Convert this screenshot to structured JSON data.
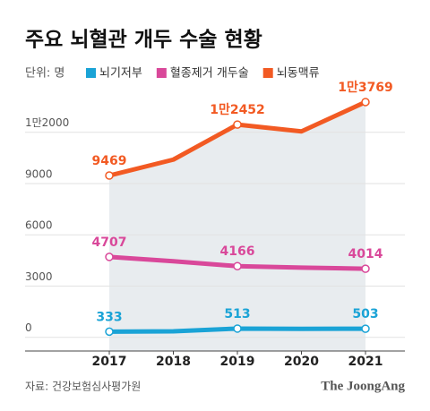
{
  "chart_data": {
    "type": "line",
    "title": "주요 뇌혈관 개두 수술 현황",
    "unit": "단위: 명",
    "source": "자료: 건강보험심사평가원",
    "logo": "The JoongAng",
    "categories": [
      "2017",
      "2018",
      "2019",
      "2020",
      "2021"
    ],
    "series": [
      {
        "name": "뇌기저부",
        "color": "#1aa3d6",
        "values": [
          333,
          350,
          513,
          500,
          503
        ],
        "value_labels": [
          "333",
          null,
          "513",
          null,
          "503"
        ]
      },
      {
        "name": "혈종제거 개두술",
        "color": "#d9489a",
        "values": [
          4707,
          4450,
          4166,
          4080,
          4014
        ],
        "value_labels": [
          "4707",
          null,
          "4166",
          null,
          "4014"
        ]
      },
      {
        "name": "뇌동맥류",
        "color": "#f25a23",
        "values": [
          9469,
          10400,
          12452,
          12050,
          13769
        ],
        "value_labels": [
          "9469",
          null,
          "1만2452",
          null,
          "1만3769"
        ]
      }
    ],
    "ylim": [
      -800,
      14500
    ],
    "yticks": [
      0,
      3000,
      6000,
      9000,
      {
        "value": 12000,
        "label": "1만2000"
      }
    ],
    "grid": true,
    "shade_color": "#e8ecef"
  }
}
